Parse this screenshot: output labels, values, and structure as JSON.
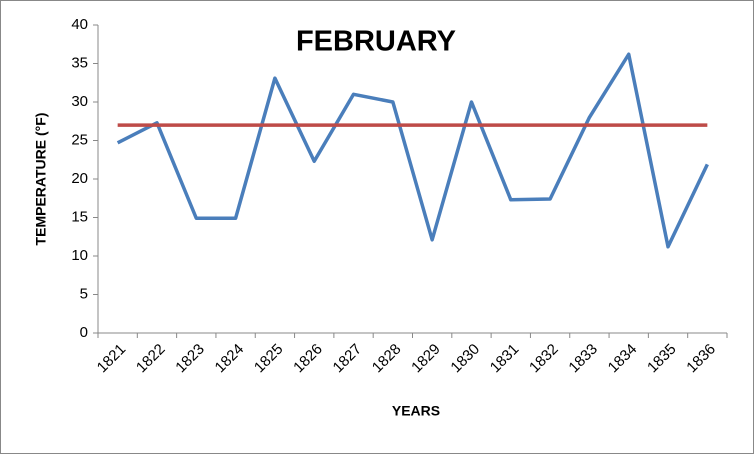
{
  "chart_data": {
    "type": "line",
    "title": "FEBRUARY",
    "x_label": "YEARS",
    "y_label": "TEMPERATURE (°F)",
    "categories": [
      "1821",
      "1822",
      "1823",
      "1824",
      "1825",
      "1826",
      "1827",
      "1828",
      "1829",
      "1830",
      "1831",
      "1832",
      "1833",
      "1834",
      "1835",
      "1836"
    ],
    "series": [
      {
        "color": "#4a7ebb",
        "values": [
          24.7,
          27.3,
          14.9,
          14.9,
          33.1,
          22.3,
          31.0,
          30.0,
          12.1,
          30.0,
          17.3,
          17.4,
          28.0,
          36.2,
          11.2,
          21.9
        ]
      },
      {
        "color": "#be4b48",
        "values": [
          27,
          27,
          27,
          27,
          27,
          27,
          27,
          27,
          27,
          27,
          27,
          27,
          27,
          27,
          27,
          27
        ]
      }
    ],
    "ylim": [
      0,
      40
    ],
    "yticks": [
      0,
      5,
      10,
      15,
      20,
      25,
      30,
      35,
      40
    ],
    "grid": false
  }
}
